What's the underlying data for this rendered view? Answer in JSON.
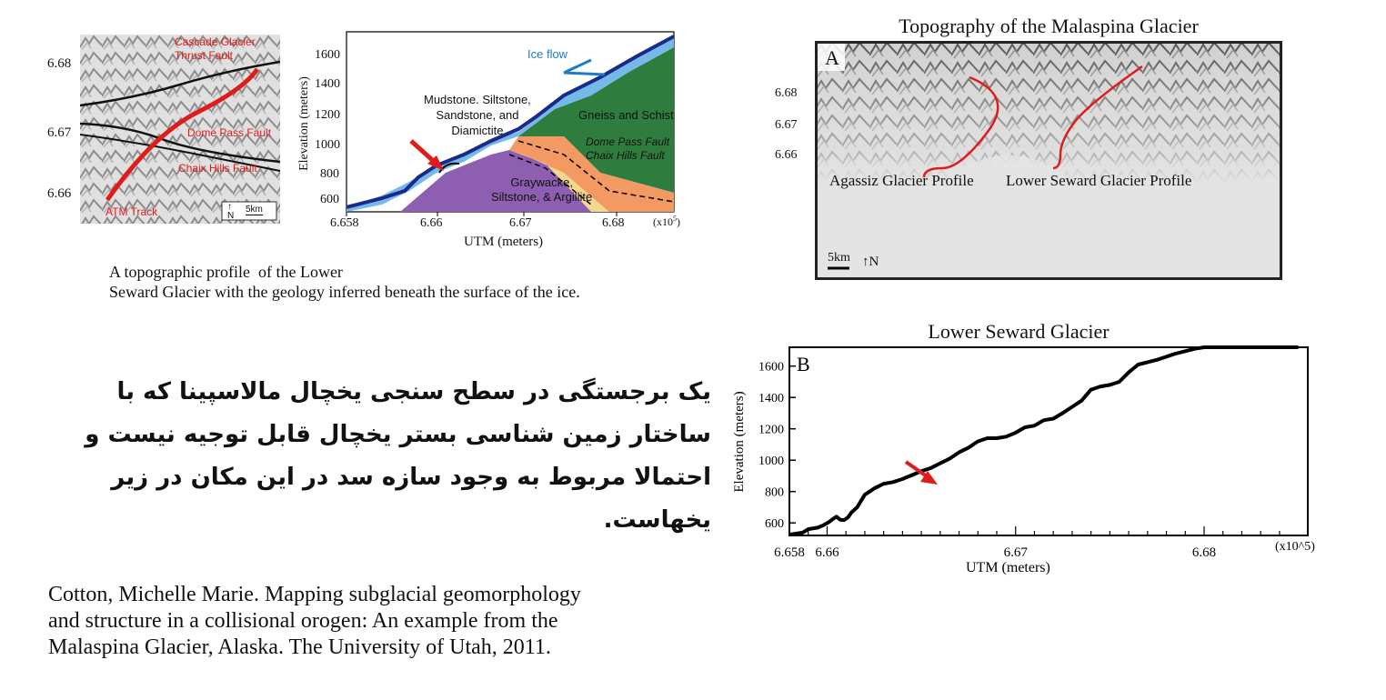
{
  "map_small": {
    "labels": {
      "cascade": "Cascade Glacier\nThrust Fault",
      "dome": "Dome Pass Fault",
      "chaix": "Chaix Hills Fault",
      "atm": "ATM Track",
      "north": "N",
      "scale": "5km"
    },
    "y_ticks": [
      "6.68",
      "6.67",
      "6.66"
    ]
  },
  "geology_profile": {
    "ylabel": "Elevation (meters)",
    "xlabel": "UTM (meters)",
    "x_ticks": [
      "6.658",
      "6.66",
      "6.67",
      "6.68"
    ],
    "x_multiplier": "(x10",
    "x_multiplier_exp": "5",
    "x_multiplier_close": ")",
    "y_ticks": [
      "1600",
      "1400",
      "1200",
      "1000",
      "800",
      "600"
    ],
    "ice_flow": "Ice flow",
    "mudstone": "Mudstone. Siltstone,\nSandstone, and\nDiamictite",
    "gneiss": "Gneiss and Schist",
    "faults": "Dome Pass Fault\nChaix Hills Fault",
    "graywacke": "Graywacke,\nSiltstone, & Argillite"
  },
  "caption": "A topographic profile  of the Lower\nSeward Glacier with the geology inferred beneath the surface of the ice.",
  "persian_text": "یک برجستگی در سطح سنجی یخچال مالاسپینا که با ساختار زمین شناسی بستر یخچال قابل توجیه نیست و احتمالا مربوط به وجود سازه سد در این مکان در زیر یخهاست.",
  "citation": "Cotton, Michelle Marie. Mapping subglacial geomorphology\nand structure in a collisional orogen: An example from the\nMalaspina Glacier, Alaska. The University of Utah, 2011.",
  "panel_a": {
    "title": "Topography of the Malaspina Glacier",
    "letter": "A",
    "y_ticks": [
      "6.68",
      "6.67",
      "6.66"
    ],
    "agassiz": "Agassiz Glacier Profile",
    "seward": "Lower Seward Glacier Profile",
    "scale": "5km",
    "north": "N"
  },
  "panel_b": {
    "title": "Lower Seward Glacier",
    "letter": "B"
  },
  "chart_data": {
    "type": "line",
    "title": "Lower Seward Glacier",
    "xlabel": "UTM (meters)",
    "ylabel": "Elevation (meters)",
    "x_tick_labels": [
      "6.658",
      "6.66",
      "6.67",
      "6.68"
    ],
    "x_multiplier": "(x10^5)",
    "y_tick_labels": [
      "1600",
      "1400",
      "1200",
      "1000",
      "800",
      "600"
    ],
    "xlim": [
      6.658,
      6.6855
    ],
    "ylim": [
      520,
      1720
    ],
    "series": [
      {
        "x": [
          6.658,
          6.6587,
          6.659,
          6.6595,
          6.6598,
          6.6601,
          6.6603,
          6.6605,
          6.6607,
          6.6609,
          6.6611,
          6.6613,
          6.6616,
          6.662,
          6.6625,
          6.663,
          6.6635,
          6.664,
          6.6645,
          6.665,
          6.6655,
          6.666,
          6.6665,
          6.667,
          6.6675,
          6.668,
          6.6685,
          6.669,
          6.6695,
          6.67,
          6.6705,
          6.671,
          6.6715,
          6.672,
          6.6725,
          6.673,
          6.6735,
          6.674,
          6.6745,
          6.675,
          6.6755,
          6.676,
          6.6765,
          6.677,
          6.6775,
          6.678,
          6.6785,
          6.679,
          6.6795,
          6.68,
          6.6805,
          6.681,
          6.6815,
          6.682,
          6.6825,
          6.683,
          6.6835,
          6.684,
          6.6845,
          6.685
        ],
        "y": [
          525,
          538,
          560,
          570,
          585,
          605,
          625,
          640,
          620,
          618,
          635,
          668,
          700,
          780,
          820,
          850,
          860,
          880,
          905,
          930,
          950,
          980,
          1010,
          1050,
          1080,
          1120,
          1140,
          1140,
          1150,
          1175,
          1210,
          1220,
          1255,
          1265,
          1300,
          1340,
          1380,
          1450,
          1470,
          1480,
          1500,
          1560,
          1610,
          1625,
          1640,
          1660,
          1680,
          1695,
          1710,
          1720,
          1720,
          1720,
          1720,
          1720,
          1720,
          1720,
          1720,
          1720,
          1720,
          1720
        ]
      }
    ]
  }
}
